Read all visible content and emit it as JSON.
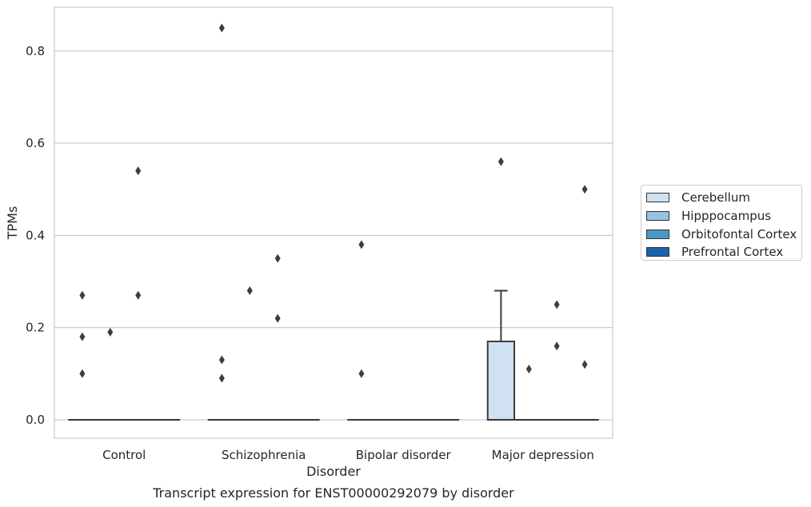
{
  "chart_data": {
    "type": "box",
    "title": "Transcript expression for ENST00000292079 by disorder",
    "xlabel": "Disorder",
    "ylabel": "TPMs",
    "ylim": [
      -0.04,
      0.895
    ],
    "yticks": [
      0.0,
      0.2,
      0.4,
      0.6,
      0.8
    ],
    "ytick_labels": [
      "0.0",
      "0.2",
      "0.4",
      "0.6",
      "0.8"
    ],
    "grid": true,
    "legend_position": "right",
    "categories": [
      "Control",
      "Schizophrenia",
      "Bipolar disorder",
      "Major depression"
    ],
    "series": [
      {
        "name": "Cerebellum",
        "color": "#d0e1f2",
        "boxes": [
          {
            "q1": 0,
            "median": 0,
            "q3": 0,
            "whisker_low": 0,
            "whisker_high": 0,
            "outliers": [
              0.1,
              0.18,
              0.27
            ]
          },
          {
            "q1": 0,
            "median": 0,
            "q3": 0,
            "whisker_low": 0,
            "whisker_high": 0,
            "outliers": [
              0.09,
              0.13,
              0.85
            ]
          },
          {
            "q1": 0,
            "median": 0,
            "q3": 0,
            "whisker_low": 0,
            "whisker_high": 0,
            "outliers": [
              0.1,
              0.38
            ]
          },
          {
            "q1": 0,
            "median": 0,
            "q3": 0.17,
            "whisker_low": 0,
            "whisker_high": 0.28,
            "outliers": [
              0.56
            ]
          }
        ]
      },
      {
        "name": "Hipppocampus",
        "color": "#94c4df",
        "boxes": [
          {
            "q1": 0,
            "median": 0,
            "q3": 0,
            "whisker_low": 0,
            "whisker_high": 0,
            "outliers": [
              0.19
            ]
          },
          {
            "q1": 0,
            "median": 0,
            "q3": 0,
            "whisker_low": 0,
            "whisker_high": 0,
            "outliers": [
              0.28
            ]
          },
          {
            "q1": 0,
            "median": 0,
            "q3": 0,
            "whisker_low": 0,
            "whisker_high": 0,
            "outliers": []
          },
          {
            "q1": 0,
            "median": 0,
            "q3": 0,
            "whisker_low": 0,
            "whisker_high": 0,
            "outliers": [
              0.11
            ]
          }
        ]
      },
      {
        "name": "Orbitofontal Cortex",
        "color": "#4a98c9",
        "boxes": [
          {
            "q1": 0,
            "median": 0,
            "q3": 0,
            "whisker_low": 0,
            "whisker_high": 0,
            "outliers": [
              0.27,
              0.54
            ]
          },
          {
            "q1": 0,
            "median": 0,
            "q3": 0,
            "whisker_low": 0,
            "whisker_high": 0,
            "outliers": [
              0.22,
              0.35
            ]
          },
          {
            "q1": 0,
            "median": 0,
            "q3": 0,
            "whisker_low": 0,
            "whisker_high": 0,
            "outliers": []
          },
          {
            "q1": 0,
            "median": 0,
            "q3": 0,
            "whisker_low": 0,
            "whisker_high": 0,
            "outliers": [
              0.16,
              0.25
            ]
          }
        ]
      },
      {
        "name": "Prefrontal Cortex",
        "color": "#1764ab",
        "boxes": [
          {
            "q1": 0,
            "median": 0,
            "q3": 0,
            "whisker_low": 0,
            "whisker_high": 0,
            "outliers": []
          },
          {
            "q1": 0,
            "median": 0,
            "q3": 0,
            "whisker_low": 0,
            "whisker_high": 0,
            "outliers": []
          },
          {
            "q1": 0,
            "median": 0,
            "q3": 0,
            "whisker_low": 0,
            "whisker_high": 0,
            "outliers": []
          },
          {
            "q1": 0,
            "median": 0,
            "q3": 0,
            "whisker_low": 0,
            "whisker_high": 0,
            "outliers": [
              0.12,
              0.5
            ]
          }
        ]
      }
    ]
  }
}
